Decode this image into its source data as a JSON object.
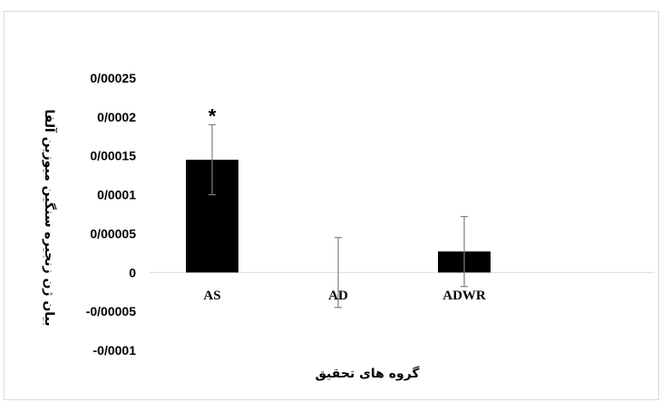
{
  "chart_data": {
    "type": "bar",
    "categories": [
      "AS",
      "AD",
      "ADWR"
    ],
    "series": [
      {
        "values": [
          0.000145,
          0,
          2.7e-05
        ],
        "error": [
          4.5e-05,
          4.5e-05,
          4.5e-05
        ],
        "color": "#000000"
      }
    ],
    "xlabel": "گروه های تحقیق",
    "ylabel": "بیان ژن زنجیره سنگین میوزین آلفا",
    "ylim": [
      -0.0001,
      0.00025
    ],
    "yticks": [
      -0.0001,
      -5e-05,
      0,
      5e-05,
      0.0001,
      0.00015,
      0.0002,
      0.00025
    ],
    "ytick_labels": [
      "-0/0001",
      "-0/00005",
      "0",
      "0/00005",
      "0/0001",
      "0/00015",
      "0/0002",
      "0/00025"
    ],
    "annotations": [
      {
        "category": "AS",
        "text": "*"
      }
    ],
    "grid": false,
    "error_bar_color": "#7f7f7f",
    "axis_line_color": "#d9d9d9"
  }
}
